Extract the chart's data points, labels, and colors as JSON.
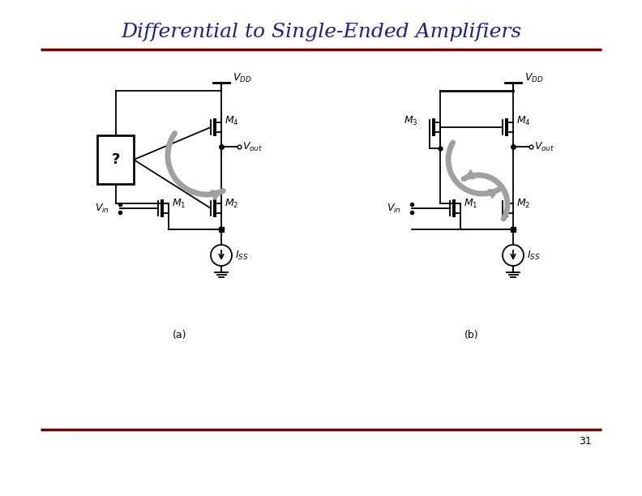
{
  "title": "Differential to Single-Ended Amplifiers",
  "title_color": "#1F1F8F",
  "title_fontsize": 18,
  "page_number": "31",
  "top_line_color": "#7B0000",
  "bottom_line_color": "#7B0000",
  "background_color": "#FFFFFF",
  "label_a": "(a)",
  "label_b": "(b)",
  "arrow_color": "#A0A0A0",
  "line_color": "#000000"
}
